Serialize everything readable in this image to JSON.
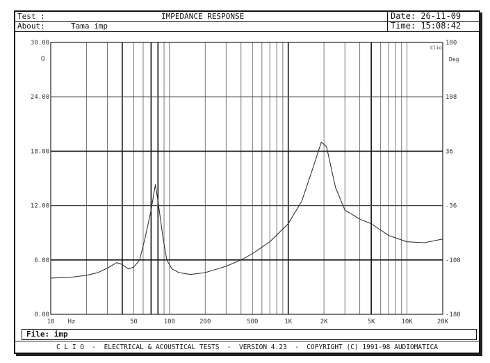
{
  "header": {
    "test_label": "Test :",
    "title": "IMPEDANCE RESPONSE",
    "about_label": "About:",
    "about_value": "Tama imp",
    "date": "Date: 26-11-09",
    "time": "Time: 15:08:42"
  },
  "file": "File:  imp",
  "footer": "C L I O  -  ELECTRICAL & ACOUSTICAL TESTS  -  VERSION 4.23  -  COPYRIGHT (C) 1991-98 AUDIOMATICA",
  "chart_data": {
    "type": "line",
    "title": "IMPEDANCE RESPONSE",
    "xlabel": "Hz",
    "ylabel": "Ω",
    "y2label": "Deg",
    "xscale": "log",
    "xlim": [
      10,
      20000
    ],
    "ylim": [
      0,
      30
    ],
    "y2lim": [
      -180,
      180
    ],
    "x_ticks": [
      {
        "v": 10,
        "l": "10"
      },
      {
        "v": 50,
        "l": "50"
      },
      {
        "v": 100,
        "l": "100"
      },
      {
        "v": 200,
        "l": "200"
      },
      {
        "v": 500,
        "l": "500"
      },
      {
        "v": 1000,
        "l": "1K"
      },
      {
        "v": 2000,
        "l": "2K"
      },
      {
        "v": 5000,
        "l": "5K"
      },
      {
        "v": 10000,
        "l": "10K"
      },
      {
        "v": 20000,
        "l": "20K"
      }
    ],
    "y_ticks": [
      "0.00",
      "6.00",
      "12.00",
      "18.00",
      "24.00",
      "30.00"
    ],
    "y2_ticks": [
      "-180",
      "-108",
      "-36",
      "36",
      "108",
      "180"
    ],
    "corner_label": "Clio",
    "grid": true,
    "series": [
      {
        "name": "Impedance",
        "x": [
          10,
          15,
          20,
          25,
          30,
          36,
          40,
          45,
          50,
          56,
          62,
          70,
          76,
          80,
          88,
          95,
          105,
          120,
          150,
          200,
          300,
          400,
          500,
          700,
          1000,
          1300,
          1600,
          1900,
          2100,
          2500,
          3000,
          4000,
          5000,
          7000,
          10000,
          14000,
          20000
        ],
        "y": [
          4.0,
          4.1,
          4.3,
          4.6,
          5.1,
          5.7,
          5.5,
          5.0,
          5.2,
          6.0,
          8.3,
          11.5,
          14.3,
          12.5,
          8.5,
          6.0,
          5.0,
          4.6,
          4.4,
          4.6,
          5.3,
          6.0,
          6.7,
          8.0,
          10.0,
          12.5,
          16.0,
          19.0,
          18.5,
          14.0,
          11.5,
          10.5,
          10.0,
          8.7,
          8.0,
          7.9,
          8.3
        ]
      }
    ]
  }
}
